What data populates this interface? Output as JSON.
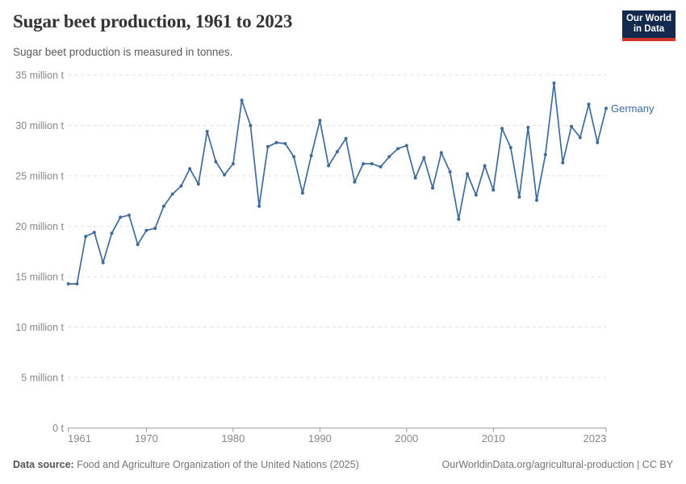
{
  "header": {
    "title": "Sugar beet production, 1961 to 2023",
    "subtitle": "Sugar beet production is measured in tonnes."
  },
  "logo": {
    "line1": "Our World",
    "line2": "in Data"
  },
  "footer": {
    "source_label": "Data source:",
    "source_text": "Food and Agriculture Organization of the United Nations (2025)",
    "credit": "OurWorldinData.org/agricultural-production | CC BY"
  },
  "colors": {
    "line": "#3f6a9c",
    "entity_label": "#3d6c9e",
    "grid": "#e2e2e2",
    "axis": "#999999",
    "tick_text": "#878787",
    "title": "#333333",
    "subtitle": "#5a5a5a",
    "footer": "#757575",
    "logo_bg": "#13294e",
    "logo_red": "#d13427"
  },
  "chart_data": {
    "type": "line",
    "title": "Sugar beet production, 1961 to 2023",
    "subtitle": "Sugar beet production is measured in tonnes.",
    "unit": "tonnes",
    "xlim": [
      1961,
      2023
    ],
    "ylim": [
      0,
      35000000
    ],
    "grid": "horizontal-dashed",
    "legend_position": "end-of-line-label",
    "x": [
      1961,
      1962,
      1963,
      1964,
      1965,
      1966,
      1967,
      1968,
      1969,
      1970,
      1971,
      1972,
      1973,
      1974,
      1975,
      1976,
      1977,
      1978,
      1979,
      1980,
      1981,
      1982,
      1983,
      1984,
      1985,
      1986,
      1987,
      1988,
      1989,
      1990,
      1991,
      1992,
      1993,
      1994,
      1995,
      1996,
      1997,
      1998,
      1999,
      2000,
      2001,
      2002,
      2003,
      2004,
      2005,
      2006,
      2007,
      2008,
      2009,
      2010,
      2011,
      2012,
      2013,
      2014,
      2015,
      2016,
      2017,
      2018,
      2019,
      2020,
      2021,
      2022,
      2023
    ],
    "series": [
      {
        "name": "Germany",
        "values_million_t": [
          14.3,
          14.3,
          19.0,
          19.4,
          16.4,
          19.3,
          20.9,
          21.1,
          18.2,
          19.6,
          19.8,
          22.0,
          23.2,
          24.0,
          25.7,
          24.2,
          29.4,
          26.4,
          25.1,
          26.2,
          32.5,
          30.0,
          22.0,
          27.9,
          28.3,
          28.2,
          26.9,
          23.3,
          27.0,
          30.5,
          26.0,
          27.4,
          28.7,
          24.4,
          26.2,
          26.2,
          25.9,
          26.9,
          27.7,
          28.0,
          24.8,
          26.8,
          23.8,
          27.3,
          25.4,
          20.7,
          25.2,
          23.1,
          26.0,
          23.6,
          29.7,
          27.8,
          22.9,
          29.8,
          22.6,
          27.1,
          34.2,
          26.3,
          29.9,
          28.8,
          32.1,
          28.3,
          31.7
        ]
      }
    ],
    "x_ticks": [
      1961,
      1970,
      1980,
      1990,
      2000,
      2010,
      2023
    ],
    "y_ticks": [
      {
        "value": 0,
        "label": "0 t"
      },
      {
        "value": 5,
        "label": "5 million t"
      },
      {
        "value": 10,
        "label": "10 million t"
      },
      {
        "value": 15,
        "label": "15 million t"
      },
      {
        "value": 20,
        "label": "20 million t"
      },
      {
        "value": 25,
        "label": "25 million t"
      },
      {
        "value": 30,
        "label": "30 million t"
      },
      {
        "value": 35,
        "label": "35 million t"
      }
    ]
  }
}
